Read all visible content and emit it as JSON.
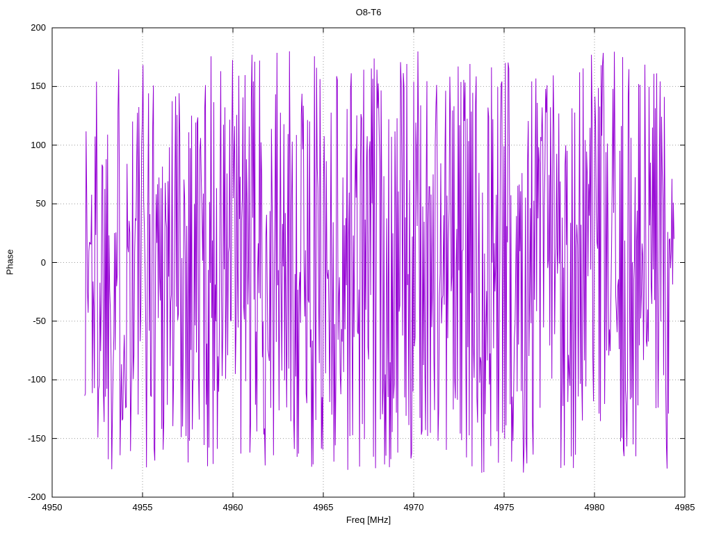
{
  "title": "O8-T6",
  "chart_data": {
    "type": "line",
    "title": "O8-T6",
    "xlabel": "Freq [MHz]",
    "ylabel": "Phase",
    "xlim": [
      4950,
      4985
    ],
    "ylim": [
      -200,
      200
    ],
    "xticks": [
      4950,
      4955,
      4960,
      4965,
      4970,
      4975,
      4980,
      4985
    ],
    "yticks": [
      -200,
      -150,
      -100,
      -50,
      0,
      50,
      100,
      150,
      200
    ],
    "grid": true,
    "legend": "none",
    "background": "#ffffff",
    "grid_color": "#9a9a9a",
    "border_color": "#000000",
    "series": [
      {
        "name": "phase",
        "color": "#9400d3",
        "description": "Wrapped phase noise, approximately uniformly distributed between -180 and +180 degrees across the band",
        "x_start": 4951.8,
        "x_end": 4984.4,
        "n_points": 850,
        "y_min": -180,
        "y_max": 180,
        "seed": 1337
      }
    ]
  }
}
